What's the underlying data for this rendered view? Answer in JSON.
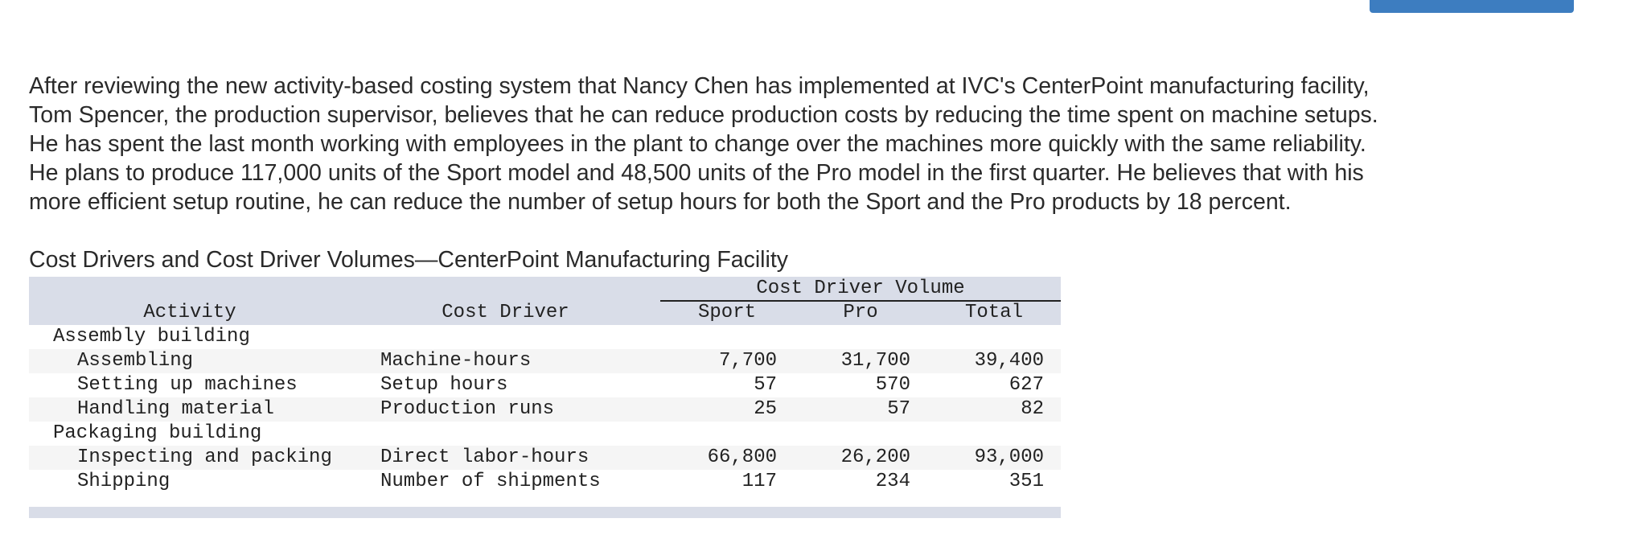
{
  "toolbar": {
    "top_button_label": ""
  },
  "intro": {
    "lines": [
      "After reviewing the new activity-based costing system that Nancy Chen has implemented at IVC's CenterPoint manufacturing facility,",
      "Tom Spencer, the production supervisor, believes that he can reduce production costs by reducing the time spent on machine setups.",
      "He has spent the last month working with employees in the plant to change over the machines more quickly with the same reliability.",
      "He plans to produce 117,000 units of the Sport model and 48,500 units of the Pro model in the first quarter. He believes that with his",
      "more efficient setup routine, he can reduce the number of setup hours for both the Sport and the Pro products by 18 percent."
    ]
  },
  "table": {
    "caption": "Cost Drivers and Cost Driver Volumes—CenterPoint Manufacturing Facility",
    "group_header": "Cost Driver Volume",
    "columns": {
      "activity": "Activity",
      "cost_driver": "Cost Driver",
      "sport": "Sport",
      "pro": "Pro",
      "total": "Total"
    },
    "rows": [
      {
        "activity": "Assembly building",
        "cost_driver": "",
        "sport": "",
        "pro": "",
        "total": ""
      },
      {
        "activity": "Assembling",
        "cost_driver": "Machine-hours",
        "sport": "7,700",
        "pro": "31,700",
        "total": "39,400"
      },
      {
        "activity": "Setting up machines",
        "cost_driver": "Setup hours",
        "sport": "57",
        "pro": "570",
        "total": "627"
      },
      {
        "activity": "Handling material",
        "cost_driver": "Production runs",
        "sport": "25",
        "pro": "57",
        "total": "82"
      },
      {
        "activity": "Packaging building",
        "cost_driver": "",
        "sport": "",
        "pro": "",
        "total": ""
      },
      {
        "activity": "Inspecting and packing",
        "cost_driver": "Direct labor-hours",
        "sport": "66,800",
        "pro": "26,200",
        "total": "93,000"
      },
      {
        "activity": "Shipping",
        "cost_driver": "Number of shipments",
        "sport": "117",
        "pro": "234",
        "total": "351"
      }
    ]
  }
}
